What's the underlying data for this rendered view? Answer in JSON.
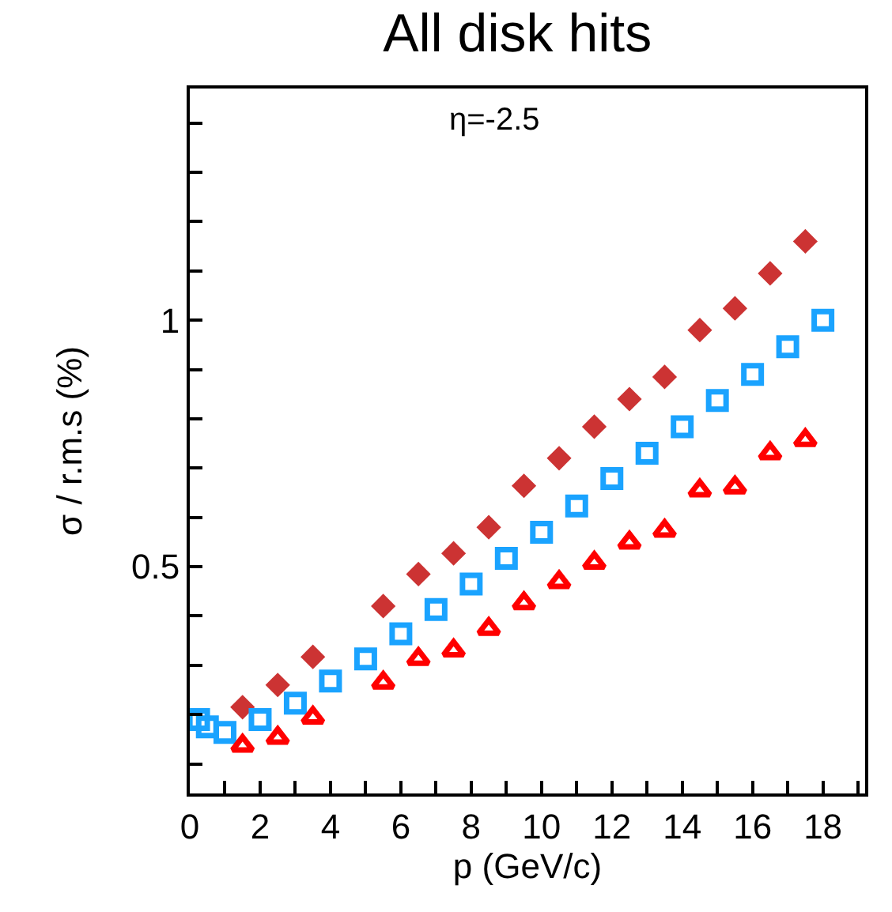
{
  "chart_data": {
    "type": "scatter",
    "title": "All disk hits",
    "xlabel": "p (GeV/c)",
    "ylabel": "σ / r.m.s (%)",
    "annotations": [
      "η=-2.5"
    ],
    "xlim": [
      0,
      19.2
    ],
    "ylim": [
      0.04,
      1.47
    ],
    "xticks": [
      0,
      {
        "value": 1,
        "label": null
      },
      2,
      {
        "value": 3,
        "label": null
      },
      4,
      {
        "value": 5,
        "label": null
      },
      6,
      {
        "value": 7,
        "label": null
      },
      8,
      {
        "value": 9,
        "label": null
      },
      10,
      {
        "value": 11,
        "label": null
      },
      12,
      {
        "value": 13,
        "label": null
      },
      14,
      {
        "value": 15,
        "label": null
      },
      16,
      {
        "value": 17,
        "label": null
      },
      18,
      {
        "value": 19,
        "label": null
      }
    ],
    "yticks": [
      {
        "value": 0.1,
        "label": null
      },
      {
        "value": 0.2,
        "label": null
      },
      {
        "value": 0.3,
        "label": null
      },
      {
        "value": 0.4,
        "label": null
      },
      0.5,
      {
        "value": 0.6,
        "label": null
      },
      {
        "value": 0.7,
        "label": null
      },
      {
        "value": 0.8,
        "label": null
      },
      {
        "value": 0.9,
        "label": null
      },
      1,
      {
        "value": 1.1,
        "label": null
      },
      {
        "value": 1.2,
        "label": null
      },
      {
        "value": 1.3,
        "label": null
      },
      {
        "value": 1.4,
        "label": null
      }
    ],
    "series": [
      {
        "color": "#cc3333",
        "marker": "diamond",
        "x": [
          1.5,
          2.5,
          3.5,
          5.5,
          6.5,
          7.5,
          8.5,
          9.5,
          10.5,
          11.5,
          12.5,
          13.5,
          14.5,
          15.5,
          16.5,
          17.5
        ],
        "values": [
          0.215,
          0.26,
          0.317,
          0.42,
          0.485,
          0.527,
          0.58,
          0.664,
          0.72,
          0.784,
          0.84,
          0.885,
          0.98,
          1.024,
          1.095,
          1.16
        ]
      },
      {
        "color": "#1aa3ff",
        "marker": "square",
        "x": [
          0.25,
          0.5,
          1,
          2,
          3,
          4,
          5,
          6,
          7,
          8,
          9,
          10,
          11,
          12,
          13,
          14,
          15,
          16,
          17,
          18
        ],
        "values": [
          0.19,
          0.175,
          0.164,
          0.19,
          0.223,
          0.268,
          0.313,
          0.364,
          0.413,
          0.465,
          0.517,
          0.57,
          0.623,
          0.679,
          0.73,
          0.784,
          0.837,
          0.89,
          0.946,
          1.0
        ]
      },
      {
        "color": "#ff0000",
        "marker": "triangle",
        "x": [
          1.5,
          2.5,
          3.5,
          5.5,
          6.5,
          7.5,
          8.5,
          9.5,
          10.5,
          11.5,
          12.5,
          13.5,
          14.5,
          15.5,
          16.5,
          17.5
        ],
        "values": [
          0.137,
          0.153,
          0.194,
          0.265,
          0.313,
          0.33,
          0.374,
          0.426,
          0.469,
          0.508,
          0.549,
          0.573,
          0.655,
          0.661,
          0.73,
          0.757
        ]
      }
    ]
  }
}
